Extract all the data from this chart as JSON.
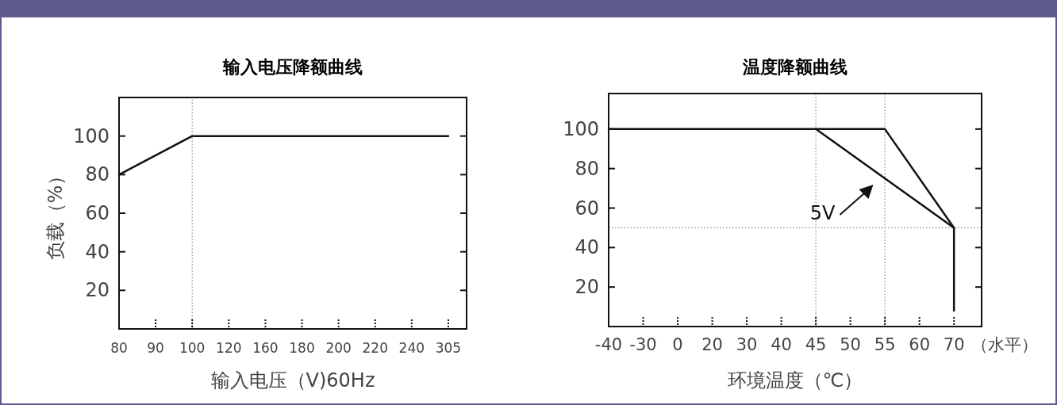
{
  "chart_data": [
    {
      "type": "line",
      "title": "输入电压降额曲线",
      "xlabel": "输入电压（V)60Hz",
      "ylabel": "负载（%）",
      "categories": [
        "80",
        "90",
        "100",
        "120",
        "160",
        "180",
        "200",
        "220",
        "240",
        "305"
      ],
      "series": [
        {
          "color": "#111111",
          "x": [
            "80",
            "100",
            "305"
          ],
          "values": [
            80,
            100,
            100
          ]
        }
      ],
      "ylim": [
        0,
        120
      ],
      "yticks": [
        20,
        40,
        60,
        80,
        100
      ],
      "ref_lines": [
        {
          "axis": "x",
          "value": "100",
          "line_style": "dotted",
          "color": "#888888"
        }
      ]
    },
    {
      "type": "line",
      "title": "温度降额曲线",
      "xlabel": "环境温度（℃）",
      "categories": [
        "-40",
        "-30",
        "0",
        "20",
        "30",
        "40",
        "45",
        "50",
        "55",
        "60",
        "70"
      ],
      "series": [
        {
          "color": "#111111",
          "x": [
            "-40",
            "55",
            "70",
            "70"
          ],
          "values": [
            100,
            100,
            50,
            8
          ]
        },
        {
          "name": "5V",
          "color": "#111111",
          "x": [
            "45",
            "70"
          ],
          "values": [
            100,
            50
          ]
        }
      ],
      "ylim": [
        0,
        118
      ],
      "yticks": [
        20,
        40,
        60,
        80,
        100
      ],
      "ref_lines": [
        {
          "axis": "x",
          "value": "45",
          "line_style": "dotted",
          "color": "#888888"
        },
        {
          "axis": "x",
          "value": "55",
          "line_style": "dotted",
          "color": "#888888"
        },
        {
          "axis": "y",
          "value": 50,
          "line_style": "dotted",
          "color": "#888888"
        }
      ],
      "annotations": [
        "（水平）"
      ]
    }
  ]
}
